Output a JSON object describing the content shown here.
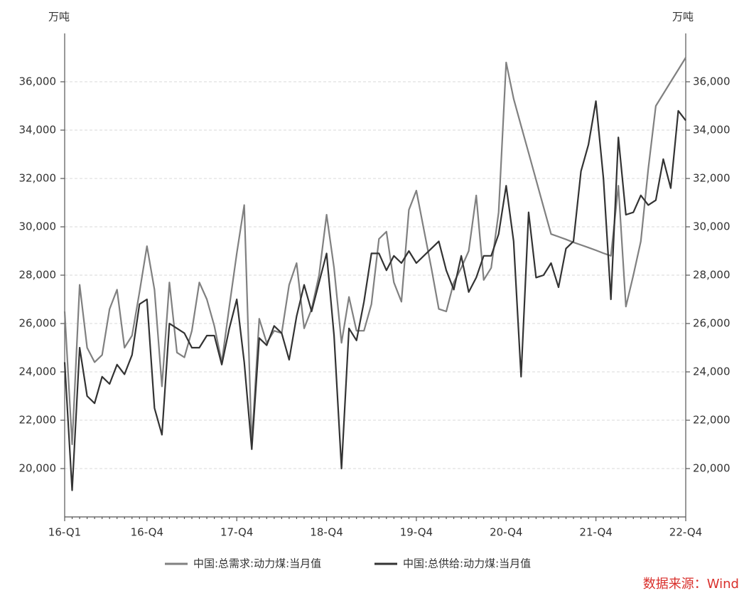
{
  "chart_data": {
    "type": "line",
    "y_axis_label": "万吨",
    "y2_axis_label": "万吨",
    "source": "数据来源：Wind",
    "categories": [
      "16-Q1",
      null,
      null,
      null,
      null,
      null,
      null,
      null,
      null,
      null,
      null,
      "16-Q4",
      null,
      null,
      null,
      null,
      null,
      null,
      null,
      null,
      null,
      null,
      null,
      "17-Q4",
      null,
      null,
      null,
      null,
      null,
      null,
      null,
      null,
      null,
      null,
      null,
      "18-Q4",
      null,
      null,
      null,
      null,
      null,
      null,
      null,
      null,
      null,
      null,
      null,
      "19-Q4",
      null,
      null,
      null,
      null,
      null,
      null,
      null,
      null,
      null,
      null,
      null,
      "20-Q4",
      null,
      null,
      null,
      null,
      null,
      null,
      null,
      null,
      null,
      null,
      null,
      "21-Q4",
      null,
      null,
      null,
      null,
      null,
      null,
      null,
      null,
      null,
      null,
      null,
      "22-Q4"
    ],
    "series": [
      {
        "name": "中国:总需求:动力煤:当月值",
        "color": "#808080",
        "values": [
          26500,
          21000,
          27600,
          25000,
          24400,
          24700,
          26600,
          27400,
          25000,
          25500,
          27300,
          29200,
          27400,
          23400,
          27700,
          24800,
          24600,
          25700,
          27700,
          27000,
          25900,
          24400,
          26700,
          28900,
          30900,
          21000,
          26200,
          25200,
          25700,
          25600,
          27600,
          28500,
          25800,
          26600,
          28000,
          30500,
          28300,
          25200,
          27100,
          25700,
          25700,
          26800,
          29500,
          29800,
          27700,
          26900,
          30700,
          31500,
          29900,
          28300,
          26600,
          26500,
          27700,
          28300,
          29000,
          31300,
          27800,
          28300,
          30600,
          36800,
          35300,
          34180,
          33060,
          31940,
          30820,
          29700,
          29590,
          29480,
          29360,
          29250,
          29140,
          29030,
          28910,
          28800,
          31700,
          26700,
          28000,
          29400,
          32400,
          35000,
          35500,
          36000,
          36500,
          37000
        ]
      },
      {
        "name": "中国:总供给:动力煤:当月值",
        "color": "#333333",
        "axis": "y2",
        "values": [
          24400,
          19100,
          25000,
          23000,
          22700,
          23800,
          23500,
          24300,
          23900,
          24700,
          26800,
          27000,
          22500,
          21400,
          26000,
          25800,
          25600,
          25000,
          25000,
          25500,
          25500,
          24300,
          25800,
          27000,
          24400,
          20800,
          25400,
          25100,
          25900,
          25600,
          24500,
          26300,
          27600,
          26500,
          27700,
          28900,
          25500,
          20000,
          25800,
          25300,
          26900,
          28900,
          28900,
          28200,
          28800,
          28500,
          29000,
          28500,
          28800,
          29100,
          29400,
          28200,
          27400,
          28800,
          27300,
          27900,
          28800,
          28800,
          29700,
          31700,
          29400,
          23800,
          30600,
          27900,
          28000,
          28500,
          27500,
          29100,
          29400,
          32300,
          33400,
          35200,
          32000,
          27000,
          33700,
          30500,
          30600,
          31300,
          30900,
          31100,
          32800,
          31600,
          34800,
          34400
        ]
      }
    ],
    "ylim": [
      18000,
      38000
    ],
    "yticks": [
      {
        "value": 20000,
        "label": "20,000"
      },
      {
        "value": 22000,
        "label": "22,000"
      },
      {
        "value": 24000,
        "label": "24,000"
      },
      {
        "value": 26000,
        "label": "26,000"
      },
      {
        "value": 28000,
        "label": "28,000"
      },
      {
        "value": 30000,
        "label": "30,000"
      },
      {
        "value": 32000,
        "label": "32,000"
      },
      {
        "value": 34000,
        "label": "34,000"
      },
      {
        "value": 36000,
        "label": "36,000"
      }
    ],
    "y2lim": [
      18000,
      38000
    ],
    "y2ticks": [
      {
        "value": 20000,
        "label": "20,000"
      },
      {
        "value": 22000,
        "label": "22,000"
      },
      {
        "value": 24000,
        "label": "24,000"
      },
      {
        "value": 26000,
        "label": "26,000"
      },
      {
        "value": 28000,
        "label": "28,000"
      },
      {
        "value": 30000,
        "label": "30,000"
      },
      {
        "value": 32000,
        "label": "32,000"
      },
      {
        "value": 34000,
        "label": "34,000"
      },
      {
        "value": 36000,
        "label": "36,000"
      }
    ],
    "grid": true,
    "legend": "bottom"
  }
}
